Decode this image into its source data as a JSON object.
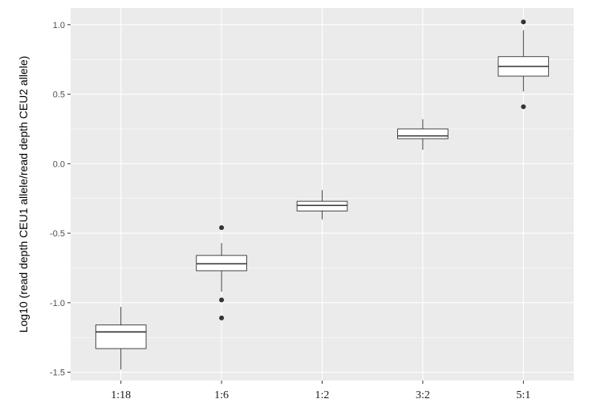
{
  "chart_data": {
    "type": "box",
    "title": "",
    "xlabel": "",
    "ylabel": "Log10 (read depth CEU1 allele/read depth CEU2 allele)",
    "ylim": [
      -1.56,
      1.12
    ],
    "yticks": [
      -1.5,
      -1.0,
      -0.5,
      0.0,
      0.5,
      1.0
    ],
    "ytick_labels": [
      "-1.5",
      "-1.0",
      "-0.5",
      "0.0",
      "0.5",
      "1.0"
    ],
    "grid": true,
    "legend": "none",
    "categories": [
      "1:18",
      "1:6",
      "1:2",
      "3:2",
      "5:1"
    ],
    "boxes": [
      {
        "category": "1:18",
        "lower_whisker": -1.48,
        "q1": -1.33,
        "median": -1.21,
        "q3": -1.16,
        "upper_whisker": -1.03,
        "outliers": []
      },
      {
        "category": "1:6",
        "lower_whisker": -0.92,
        "q1": -0.77,
        "median": -0.72,
        "q3": -0.66,
        "upper_whisker": -0.57,
        "outliers": [
          -0.46,
          -0.98,
          -1.11
        ]
      },
      {
        "category": "1:2",
        "lower_whisker": -0.4,
        "q1": -0.34,
        "median": -0.3,
        "q3": -0.27,
        "upper_whisker": -0.19,
        "outliers": []
      },
      {
        "category": "3:2",
        "lower_whisker": 0.1,
        "q1": 0.18,
        "median": 0.2,
        "q3": 0.25,
        "upper_whisker": 0.32,
        "outliers": []
      },
      {
        "category": "5:1",
        "lower_whisker": 0.52,
        "q1": 0.63,
        "median": 0.7,
        "q3": 0.77,
        "upper_whisker": 0.96,
        "outliers": [
          1.02,
          0.41
        ]
      }
    ],
    "colors": {
      "panel": "#ebebeb",
      "grid": "#ffffff",
      "box_fill": "#ffffff",
      "box_stroke": "#333333",
      "outlier": "#333333"
    }
  }
}
